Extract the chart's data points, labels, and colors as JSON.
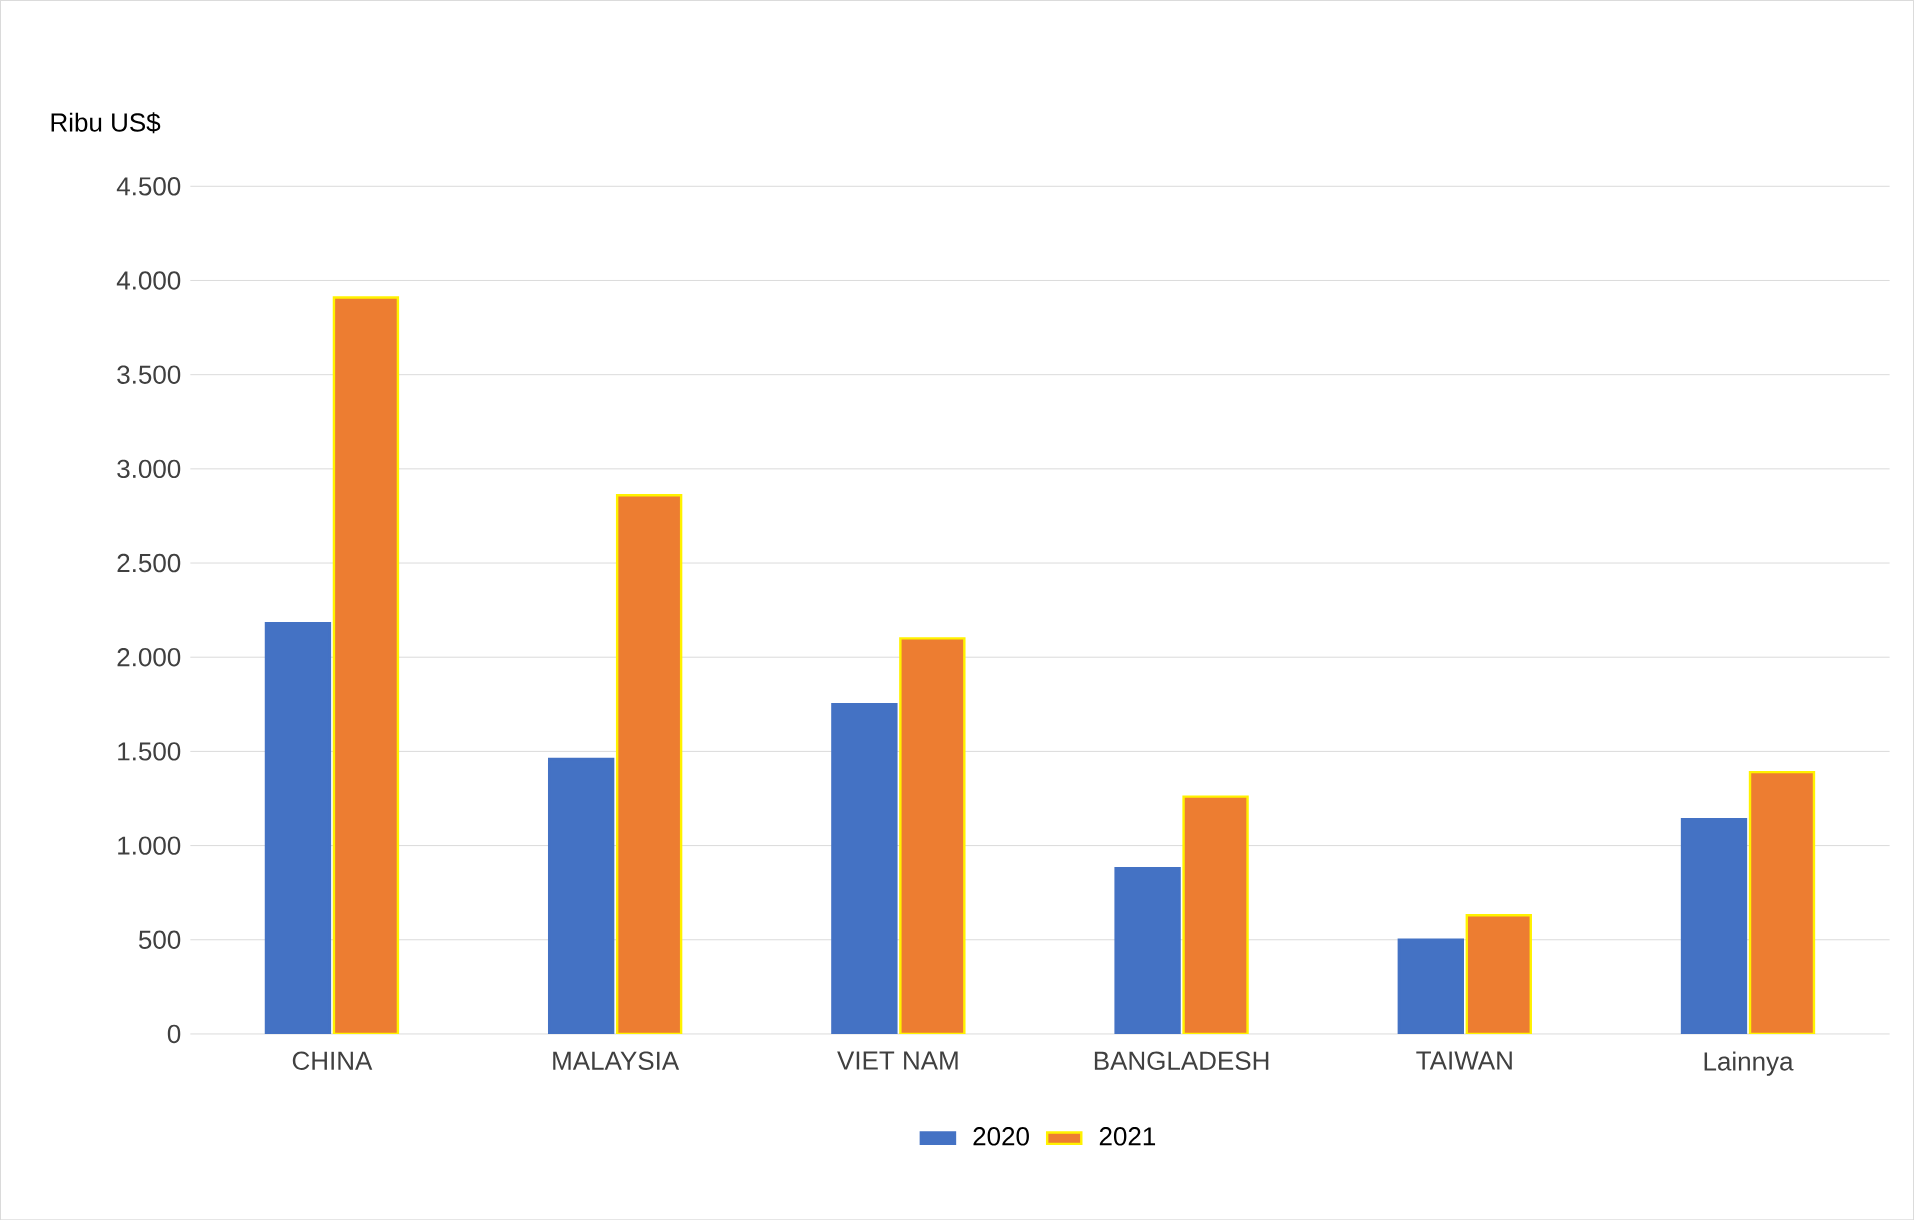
{
  "chart_data": {
    "type": "bar",
    "ylabel": "Ribu US$",
    "categories": [
      "CHINA",
      "MALAYSIA",
      "VIET NAM",
      "BANGLADESH",
      "TAIWAN",
      "Lainnya"
    ],
    "series": [
      {
        "name": "2020",
        "color": "#4472c4",
        "values": [
          2180,
          1460,
          1750,
          880,
          500,
          1140
        ]
      },
      {
        "name": "2021",
        "color": "#ed7d31",
        "values": [
          3910,
          2860,
          2100,
          1260,
          630,
          1390
        ]
      }
    ],
    "ylim": [
      0,
      4500
    ],
    "yticks": [
      0,
      {
        "value": 500,
        "label": "500"
      },
      {
        "value": 1000,
        "label": "1.000"
      },
      {
        "value": 1500,
        "label": "1.500"
      },
      {
        "value": 2000,
        "label": "2.000"
      },
      {
        "value": 2500,
        "label": "2.500"
      },
      {
        "value": 3000,
        "label": "3.000"
      },
      {
        "value": 3500,
        "label": "3.500"
      },
      {
        "value": 4000,
        "label": "4.000"
      },
      {
        "value": 4500,
        "label": "4.500"
      }
    ],
    "grid": "y",
    "legend": "bottom"
  }
}
